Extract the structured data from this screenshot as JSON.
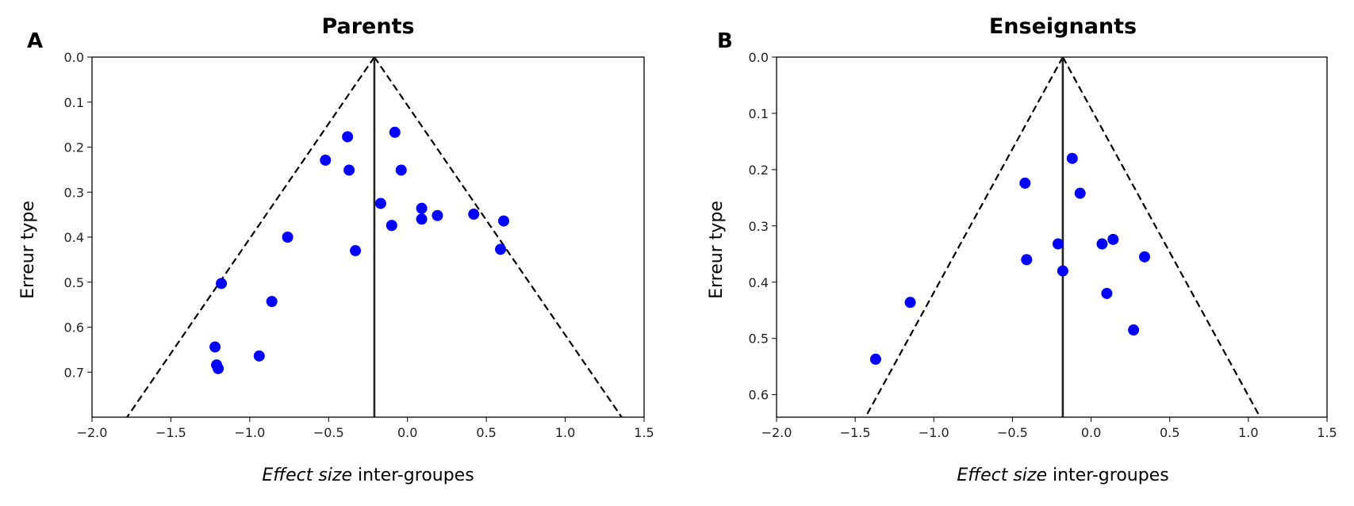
{
  "chart_data": [
    {
      "type": "scatter",
      "panel_label": "A",
      "title": "Parents",
      "xlabel_italic": "Effect size",
      "xlabel_rest": " inter-groupes",
      "ylabel": "Erreur type",
      "xlim": [
        -2.0,
        1.5
      ],
      "ylim": [
        0.0,
        0.8
      ],
      "y_inverted": true,
      "xticks": [
        -2.0,
        -1.5,
        -1.0,
        -0.5,
        0.0,
        0.5,
        1.0,
        1.5
      ],
      "xtick_labels": [
        "−2.0",
        "−1.5",
        "−1.0",
        "−0.5",
        "0.0",
        "0.5",
        "1.0",
        "1.5"
      ],
      "yticks": [
        0.0,
        0.1,
        0.2,
        0.3,
        0.4,
        0.5,
        0.6,
        0.7
      ],
      "ytick_labels": [
        "0.0",
        "0.1",
        "0.2",
        "0.3",
        "0.4",
        "0.5",
        "0.6",
        "0.7"
      ],
      "summary_effect": -0.21,
      "funnel": "pseudo 95% confidence limits",
      "points": [
        {
          "x": -0.08,
          "y": 0.167
        },
        {
          "x": -0.38,
          "y": 0.177
        },
        {
          "x": -0.52,
          "y": 0.229
        },
        {
          "x": -0.37,
          "y": 0.251
        },
        {
          "x": -0.04,
          "y": 0.251
        },
        {
          "x": -0.17,
          "y": 0.325
        },
        {
          "x": 0.09,
          "y": 0.336
        },
        {
          "x": 0.09,
          "y": 0.36
        },
        {
          "x": 0.19,
          "y": 0.352
        },
        {
          "x": 0.42,
          "y": 0.349
        },
        {
          "x": 0.61,
          "y": 0.364
        },
        {
          "x": -0.1,
          "y": 0.374
        },
        {
          "x": -0.76,
          "y": 0.4
        },
        {
          "x": -0.33,
          "y": 0.43
        },
        {
          "x": 0.59,
          "y": 0.427
        },
        {
          "x": -1.18,
          "y": 0.503
        },
        {
          "x": -0.86,
          "y": 0.543
        },
        {
          "x": -1.22,
          "y": 0.644
        },
        {
          "x": -0.94,
          "y": 0.664
        },
        {
          "x": -1.21,
          "y": 0.684
        },
        {
          "x": -1.2,
          "y": 0.692
        }
      ]
    },
    {
      "type": "scatter",
      "panel_label": "B",
      "title": "Enseignants",
      "xlabel_italic": "Effect size",
      "xlabel_rest": " inter-groupes",
      "ylabel": "Erreur type",
      "xlim": [
        -2.0,
        1.5
      ],
      "ylim": [
        0.0,
        0.64
      ],
      "y_inverted": true,
      "xticks": [
        -2.0,
        -1.5,
        -1.0,
        -0.5,
        0.0,
        0.5,
        1.0,
        1.5
      ],
      "xtick_labels": [
        "−2.0",
        "−1.5",
        "−1.0",
        "−0.5",
        "0.0",
        "0.5",
        "1.0",
        "1.5"
      ],
      "yticks": [
        0.0,
        0.1,
        0.2,
        0.3,
        0.4,
        0.5,
        0.6
      ],
      "ytick_labels": [
        "0.0",
        "0.1",
        "0.2",
        "0.3",
        "0.4",
        "0.5",
        "0.6"
      ],
      "summary_effect": -0.18,
      "funnel": "pseudo 95% confidence limits",
      "points": [
        {
          "x": -0.12,
          "y": 0.18
        },
        {
          "x": -0.42,
          "y": 0.224
        },
        {
          "x": -0.07,
          "y": 0.242
        },
        {
          "x": -0.21,
          "y": 0.332
        },
        {
          "x": 0.07,
          "y": 0.332
        },
        {
          "x": 0.14,
          "y": 0.324
        },
        {
          "x": 0.34,
          "y": 0.355
        },
        {
          "x": -0.41,
          "y": 0.36
        },
        {
          "x": -0.18,
          "y": 0.38
        },
        {
          "x": 0.1,
          "y": 0.42
        },
        {
          "x": -1.15,
          "y": 0.436
        },
        {
          "x": 0.27,
          "y": 0.485
        },
        {
          "x": -1.37,
          "y": 0.537
        }
      ]
    }
  ]
}
